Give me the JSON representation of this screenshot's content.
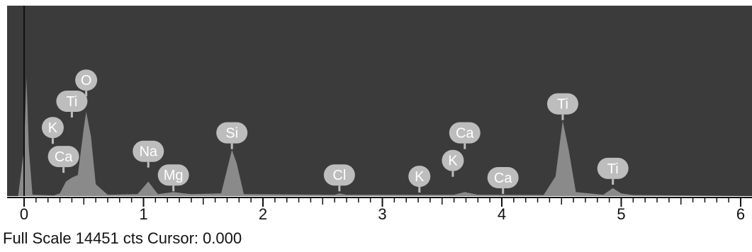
{
  "chart_data": {
    "type": "area",
    "title": "",
    "xlabel": "",
    "ylabel": "",
    "xlim": [
      0,
      6
    ],
    "ylim": [
      0,
      14451
    ],
    "x_ticks": [
      0,
      1,
      2,
      3,
      4,
      5,
      6
    ],
    "grid": false,
    "legend": "none",
    "series": [
      {
        "values": [
          {
            "x": -0.05,
            "y": 0
          },
          {
            "x": 0.0,
            "y": 3600
          },
          {
            "x": 0.02,
            "y": 9000
          },
          {
            "x": 0.04,
            "y": 3600
          },
          {
            "x": 0.07,
            "y": 100
          },
          {
            "x": 0.25,
            "y": 50
          },
          {
            "x": 0.3,
            "y": 200
          },
          {
            "x": 0.35,
            "y": 1100
          },
          {
            "x": 0.4,
            "y": 1400
          },
          {
            "x": 0.45,
            "y": 1600
          },
          {
            "x": 0.5,
            "y": 5200
          },
          {
            "x": 0.52,
            "y": 6400
          },
          {
            "x": 0.56,
            "y": 4500
          },
          {
            "x": 0.6,
            "y": 900
          },
          {
            "x": 0.7,
            "y": 100
          },
          {
            "x": 0.95,
            "y": 150
          },
          {
            "x": 1.04,
            "y": 1100
          },
          {
            "x": 1.12,
            "y": 150
          },
          {
            "x": 1.25,
            "y": 300
          },
          {
            "x": 1.4,
            "y": 150
          },
          {
            "x": 1.65,
            "y": 200
          },
          {
            "x": 1.74,
            "y": 3500
          },
          {
            "x": 1.78,
            "y": 2500
          },
          {
            "x": 1.84,
            "y": 150
          },
          {
            "x": 2.6,
            "y": 100
          },
          {
            "x": 2.64,
            "y": 200
          },
          {
            "x": 2.7,
            "y": 100
          },
          {
            "x": 3.6,
            "y": 100
          },
          {
            "x": 3.69,
            "y": 300
          },
          {
            "x": 3.8,
            "y": 100
          },
          {
            "x": 4.35,
            "y": 80
          },
          {
            "x": 4.45,
            "y": 1500
          },
          {
            "x": 4.51,
            "y": 5700
          },
          {
            "x": 4.56,
            "y": 3500
          },
          {
            "x": 4.62,
            "y": 300
          },
          {
            "x": 4.85,
            "y": 100
          },
          {
            "x": 4.93,
            "y": 600
          },
          {
            "x": 5.0,
            "y": 200
          },
          {
            "x": 5.1,
            "y": 80
          },
          {
            "x": 6.1,
            "y": 0
          }
        ]
      }
    ],
    "peak_labels": [
      {
        "element": "O",
        "x": 0.52,
        "label_y": 8800
      },
      {
        "element": "Ti",
        "x": 0.4,
        "label_y": 7200
      },
      {
        "element": "K",
        "x": 0.24,
        "label_y": 5200
      },
      {
        "element": "Ca",
        "x": 0.33,
        "label_y": 3000
      },
      {
        "element": "Na",
        "x": 1.04,
        "label_y": 3400
      },
      {
        "element": "Mg",
        "x": 1.25,
        "label_y": 1600
      },
      {
        "element": "Si",
        "x": 1.74,
        "label_y": 4800
      },
      {
        "element": "Cl",
        "x": 2.64,
        "label_y": 1600
      },
      {
        "element": "K",
        "x": 3.31,
        "label_y": 1500
      },
      {
        "element": "K",
        "x": 3.59,
        "label_y": 2700
      },
      {
        "element": "Ca",
        "x": 3.69,
        "label_y": 4800
      },
      {
        "element": "Ca",
        "x": 4.01,
        "label_y": 1400
      },
      {
        "element": "Ti",
        "x": 4.51,
        "label_y": 7000
      },
      {
        "element": "Ti",
        "x": 4.93,
        "label_y": 2100
      }
    ],
    "colors": {
      "background": "#3b3b3b",
      "fill": "#8a8a8a",
      "label_bubble": "#bdbdbd",
      "label_text": "#ffffff",
      "cursor": "#111111"
    },
    "cursor_x": 0
  },
  "status": {
    "full_scale_label": "Full Scale",
    "full_scale_value": "14451",
    "units": "cts",
    "cursor_label": "Cursor:",
    "cursor_value": "0.000"
  }
}
